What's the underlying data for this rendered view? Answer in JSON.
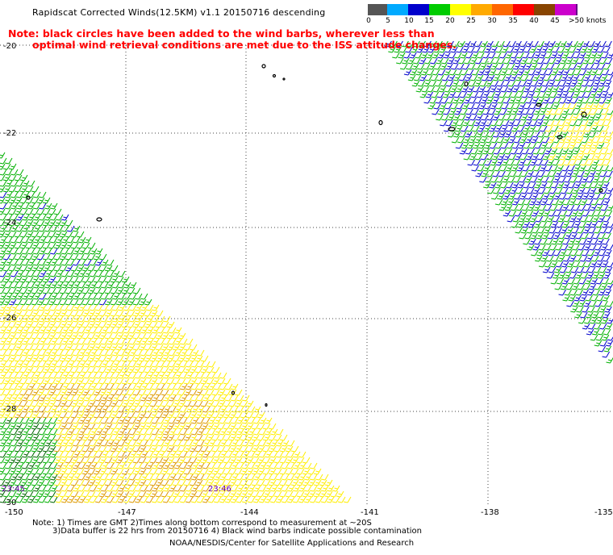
{
  "title": "Rapidscat Corrected Winds(12.5KM) v1.1 20150716 descending",
  "note": {
    "line1": "Note: black circles have been added to the wind barbs, wherever less than",
    "line2": "optimal wind retrieval conditions are met due to the ISS attitude changes."
  },
  "colorbar": {
    "labels": [
      "0",
      "5",
      "10",
      "15",
      "20",
      "25",
      "30",
      "35",
      "40",
      "45",
      ">50 knots"
    ],
    "colors": [
      "#555555",
      "#00aaff",
      "#0000cc",
      "#00cc00",
      "#ffff00",
      "#ffaa00",
      "#ff6600",
      "#ff0000",
      "#884400",
      "#cc00cc",
      "#660088"
    ]
  },
  "axes": {
    "lat_labels": [
      "-20",
      "-22",
      "-24",
      "-26",
      "-28",
      "-30"
    ],
    "lon_labels": [
      "-150",
      "-147",
      "-144",
      "-141",
      "-138",
      "-135"
    ]
  },
  "time_labels": [
    "23:45",
    "23:46"
  ],
  "footer": {
    "line1": "Note: 1) Times are GMT 2)Times along bottom correspond to measurement at ~20S",
    "line2": "3)Data buffer is 22 hrs from 20150716 4) Black wind barbs indicate possible contamination",
    "line3": "NOAA/NESDIS/Center for Satellite Applications and Research"
  },
  "map_colors": {
    "green": "#00b000",
    "dark_green": "#006600",
    "blue": "#0000cc",
    "yellow": "#ffee00",
    "orange": "#dd9900",
    "land": "#000000",
    "grid": "#444444"
  }
}
